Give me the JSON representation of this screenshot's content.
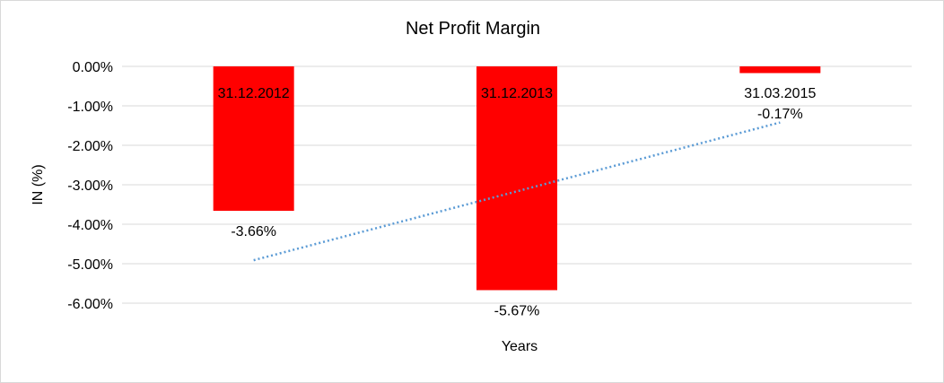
{
  "chart_data": {
    "type": "bar",
    "title": "Net Profit Margin",
    "xlabel": "Years",
    "ylabel": "IN (%)",
    "categories": [
      "31.12.2012",
      "31.12.2013",
      "31.03.2015"
    ],
    "values": [
      -3.66,
      -5.67,
      -0.17
    ],
    "data_labels": [
      "-3.66%",
      "-5.67%",
      "-0.17%"
    ],
    "ylim": [
      -6,
      0
    ],
    "yticks": [
      "0.00%",
      "-1.00%",
      "-2.00%",
      "-3.00%",
      "-4.00%",
      "-5.00%",
      "-6.00%"
    ],
    "ytick_values": [
      0,
      -1,
      -2,
      -3,
      -4,
      -5,
      -6
    ],
    "grid": true,
    "bar_color": "#ff0000",
    "trendline": {
      "type": "linear",
      "color": "#5b9bd5",
      "style": "dotted"
    }
  }
}
